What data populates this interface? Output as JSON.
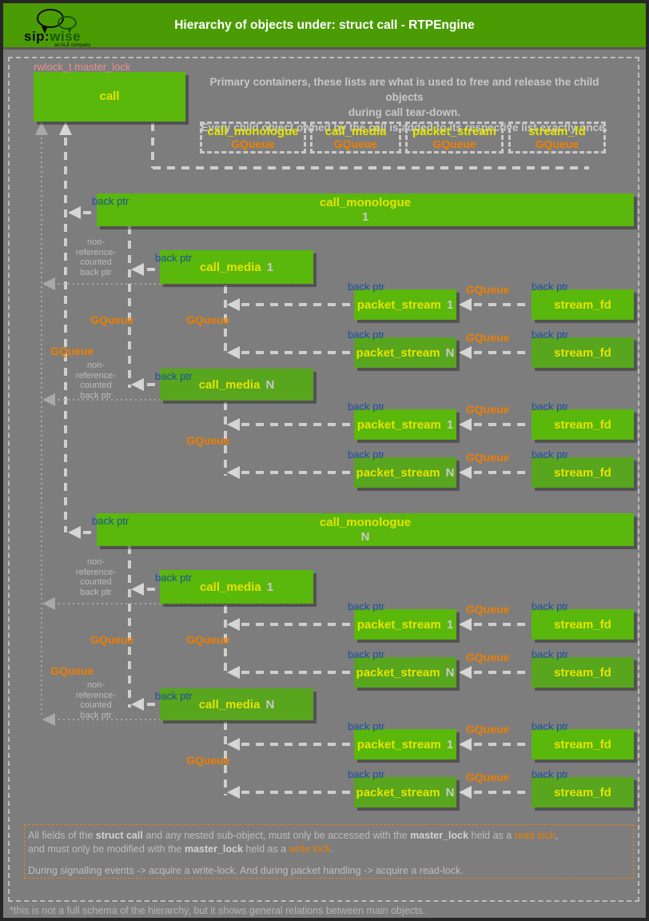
{
  "header": {
    "title": "Hierarchy of objects under: struct call - RTPEngine",
    "logo_sip": "sip:",
    "logo_wise": "wise",
    "logo_tagline": "an ALE company"
  },
  "annotations": {
    "rwlock": "rwlock_t master_lock",
    "primary_note_line1": "Primary containers, these lists are what is used to free and release the child objects",
    "primary_note_line2": "during call tear-down.",
    "primary_note_line3": "Every child object owned by the call is added to its respective list exactly once.",
    "back_ptr": "back ptr",
    "gqueue": "GQueue",
    "nonref": [
      "non-",
      "reference-",
      "counted",
      "back ptr"
    ],
    "footnote": "*this is not a full schema of the hierarchy, but it shows general relations between main objects."
  },
  "legend_boxes": [
    {
      "name": "call_monologue",
      "type": "GQueue"
    },
    {
      "name": "call_media",
      "type": "GQueue"
    },
    {
      "name": "packet_stream",
      "type": "GQueue"
    },
    {
      "name": "stream_fd",
      "type": "GQueue"
    }
  ],
  "boxes": {
    "call": "call",
    "monologue_name": "call_monologue",
    "media_name": "call_media",
    "stream_name": "packet_stream",
    "fd_name": "stream_fd",
    "suffix_1": "1",
    "suffix_n": "N"
  },
  "footer": {
    "lines": [
      [
        {
          "t": "All fields of the ",
          "s": "n"
        },
        {
          "t": "struct call",
          "s": "b"
        },
        {
          "t": " and any nested sub-object, must only be accessed with the ",
          "s": "n"
        },
        {
          "t": "master_lock",
          "s": "b"
        },
        {
          "t": " held as a ",
          "s": "n"
        },
        {
          "t": "read lock",
          "s": "o"
        },
        {
          "t": ",",
          "s": "n"
        }
      ],
      [
        {
          "t": "and must only be modified with the ",
          "s": "n"
        },
        {
          "t": "master_lock",
          "s": "b"
        },
        {
          "t": " held as a ",
          "s": "n"
        },
        {
          "t": "write lock",
          "s": "o"
        },
        {
          "t": ".",
          "s": "n"
        }
      ],
      [
        {
          "t": "During signalling events -> acquire a write-lock. And during packet handling -> acquire a read-lock.",
          "s": "n"
        }
      ]
    ]
  },
  "colors": {
    "header_green": "#4b9b04",
    "box_green": "#5ab70c",
    "box_green_dark": "#58a51e",
    "yellow": "#e4e400",
    "orange": "#ee7f00",
    "blue": "#1a4f9e",
    "salmon": "#e8918d",
    "background_gray": "#7d7d7d",
    "line_gray": "#cfcfcf",
    "line_dim_gray": "#a9a9a9"
  }
}
